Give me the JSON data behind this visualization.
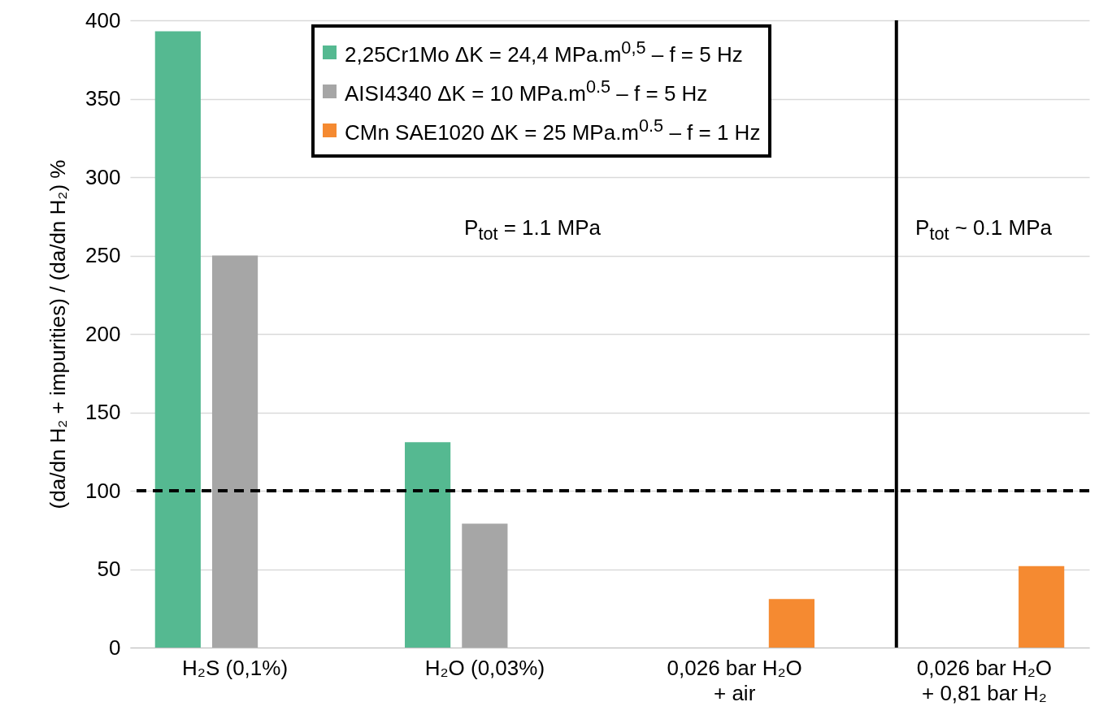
{
  "chart_data": {
    "type": "bar",
    "ylabel": "(da/dn H₂ + impurities) / (da/dn H₂) %",
    "categories": [
      "H₂S (0,1%)",
      "H₂O (0,03%)",
      "0,026 bar H₂O\n+ air",
      "0,026 bar H₂O\n+ 0,81 bar H₂"
    ],
    "series": [
      {
        "name": "2,25Cr1Mo  ΔK = 24,4 MPa.m$^{0,5}$ – f = 5 Hz",
        "color": "#55b991",
        "values": [
          393,
          131,
          null,
          null
        ]
      },
      {
        "name": "AISI4340  ΔK = 10 MPa.m$^{0.5}$ – f = 5 Hz",
        "color": "#a6a6a6",
        "values": [
          250,
          79,
          null,
          null
        ]
      },
      {
        "name": "CMn SAE1020  ΔK = 25 MPa.m$^{0.5}$ – f = 1 Hz",
        "color": "#f58a31",
        "values": [
          null,
          null,
          31,
          52
        ]
      }
    ],
    "ylim": [
      0,
      400
    ],
    "yticks": [
      0,
      50,
      100,
      150,
      200,
      250,
      300,
      350,
      400
    ],
    "grid": "y",
    "legend": "top",
    "ref_lines": [
      {
        "axis": "y",
        "value": 100,
        "color": "#000000",
        "line_style": "dashed"
      },
      {
        "axis": "x",
        "value": "0,026 bar H₂O\n+ 0,81 bar H₂",
        "color": "#000000",
        "line_style": "solid"
      }
    ],
    "annotations": [
      "P$_{tot}$ = 1.1 MPa",
      "P$_{tot}$ ~ 0.1 MPa"
    ]
  }
}
